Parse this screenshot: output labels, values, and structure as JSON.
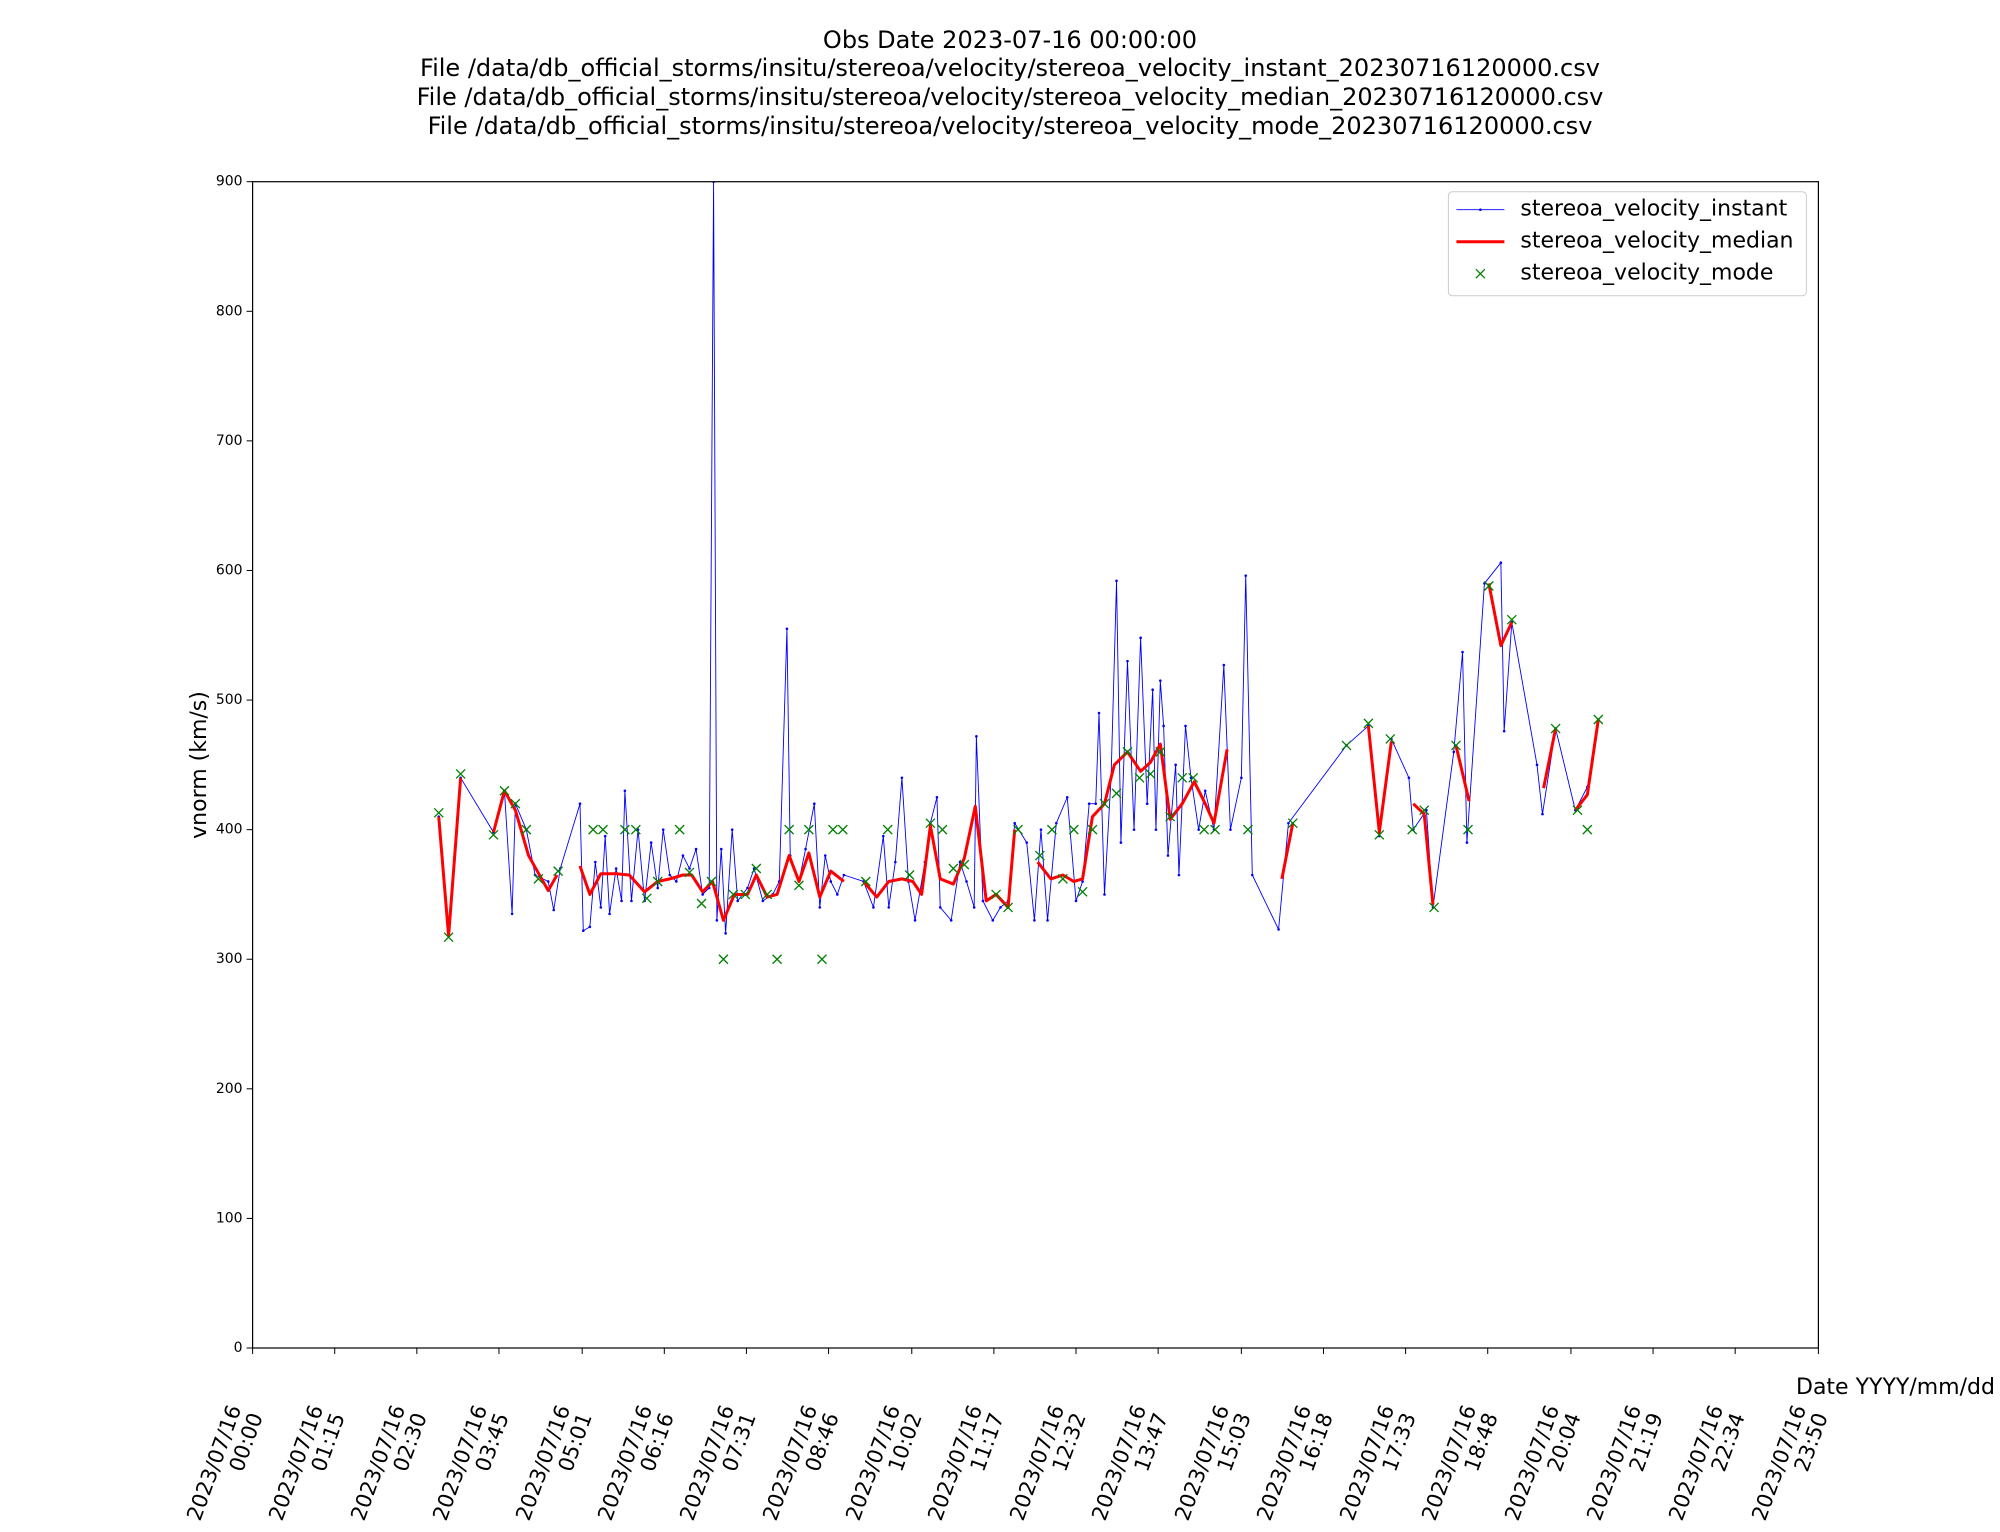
{
  "chart_data": {
    "type": "line",
    "title": [
      "Obs Date 2023-07-16 00:00:00",
      "File /data/db_official_storms/insitu/stereoa/velocity/stereoa_velocity_instant_20230716120000.csv",
      "File /data/db_official_storms/insitu/stereoa/velocity/stereoa_velocity_median_20230716120000.csv",
      "File /data/db_official_storms/insitu/stereoa/velocity/stereoa_velocity_mode_20230716120000.csv"
    ],
    "xlabel": "Date YYYY/mm/dd",
    "ylabel": "vnorm (km/s)",
    "xlim": [
      "2023/07/16 00:00",
      "2023/07/16 23:50"
    ],
    "xticks": [
      {
        "value": "2023/07/16 00:00",
        "label": "2023/07/16\n00:00"
      },
      {
        "value": "2023/07/16 01:15",
        "label": "2023/07/16\n01:15"
      },
      {
        "value": "2023/07/16 02:30",
        "label": "2023/07/16\n02:30"
      },
      {
        "value": "2023/07/16 03:45",
        "label": "2023/07/16\n03:45"
      },
      {
        "value": "2023/07/16 05:01",
        "label": "2023/07/16\n05:01"
      },
      {
        "value": "2023/07/16 06:16",
        "label": "2023/07/16\n06:16"
      },
      {
        "value": "2023/07/16 07:31",
        "label": "2023/07/16\n07:31"
      },
      {
        "value": "2023/07/16 08:46",
        "label": "2023/07/16\n08:46"
      },
      {
        "value": "2023/07/16 10:02",
        "label": "2023/07/16\n10:02"
      },
      {
        "value": "2023/07/16 11:17",
        "label": "2023/07/16\n11:17"
      },
      {
        "value": "2023/07/16 12:32",
        "label": "2023/07/16\n12:32"
      },
      {
        "value": "2023/07/16 13:47",
        "label": "2023/07/16\n13:47"
      },
      {
        "value": "2023/07/16 15:03",
        "label": "2023/07/16\n15:03"
      },
      {
        "value": "2023/07/16 16:18",
        "label": "2023/07/16\n16:18"
      },
      {
        "value": "2023/07/16 17:33",
        "label": "2023/07/16\n17:33"
      },
      {
        "value": "2023/07/16 18:48",
        "label": "2023/07/16\n18:48"
      },
      {
        "value": "2023/07/16 20:04",
        "label": "2023/07/16\n20:04"
      },
      {
        "value": "2023/07/16 21:19",
        "label": "2023/07/16\n21:19"
      },
      {
        "value": "2023/07/16 22:34",
        "label": "2023/07/16\n22:34"
      },
      {
        "value": "2023/07/16 23:50",
        "label": "2023/07/16\n23:50"
      }
    ],
    "ylim": [
      0,
      900
    ],
    "yticks": [
      0,
      100,
      200,
      300,
      400,
      500,
      600,
      700,
      800,
      900
    ],
    "legend": "upper right",
    "series": [
      {
        "name": "stereoa_velocity_instant",
        "color": "#0000ff",
        "style": "line",
        "x": [
          "2023/07/16 02:50",
          "2023/07/16 02:59",
          "2023/07/16 03:10",
          "2023/07/16 03:40",
          "2023/07/16 03:50",
          "2023/07/16 03:57",
          "2023/07/16 04:00",
          "2023/07/16 04:10",
          "2023/07/16 04:18",
          "2023/07/16 04:30",
          "2023/07/16 04:35",
          "2023/07/16 04:41",
          "2023/07/16 04:59",
          "2023/07/16 05:02",
          "2023/07/16 05:08",
          "2023/07/16 05:13",
          "2023/07/16 05:18",
          "2023/07/16 05:22",
          "2023/07/16 05:26",
          "2023/07/16 05:32",
          "2023/07/16 05:37",
          "2023/07/16 05:40",
          "2023/07/16 05:46",
          "2023/07/16 05:52",
          "2023/07/16 05:58",
          "2023/07/16 06:04",
          "2023/07/16 06:10",
          "2023/07/16 06:15",
          "2023/07/16 06:21",
          "2023/07/16 06:27",
          "2023/07/16 06:33",
          "2023/07/16 06:39",
          "2023/07/16 06:45",
          "2023/07/16 06:51",
          "2023/07/16 06:57",
          "2023/07/16 07:01",
          "2023/07/16 07:04",
          "2023/07/16 07:08",
          "2023/07/16 07:12",
          "2023/07/16 07:18",
          "2023/07/16 07:23",
          "2023/07/16 07:32",
          "2023/07/16 07:38",
          "2023/07/16 07:46",
          "2023/07/16 07:55",
          "2023/07/16 08:01",
          "2023/07/16 08:08",
          "2023/07/16 08:11",
          "2023/07/16 08:19",
          "2023/07/16 08:25",
          "2023/07/16 08:33",
          "2023/07/16 08:38",
          "2023/07/16 08:43",
          "2023/07/16 08:48",
          "2023/07/16 08:54",
          "2023/07/16 09:00",
          "2023/07/16 09:18",
          "2023/07/16 09:27",
          "2023/07/16 09:36",
          "2023/07/16 09:41",
          "2023/07/16 09:47",
          "2023/07/16 09:53",
          "2023/07/16 09:59",
          "2023/07/16 10:05",
          "2023/07/16 10:14",
          "2023/07/16 10:19",
          "2023/07/16 10:25",
          "2023/07/16 10:28",
          "2023/07/16 10:38",
          "2023/07/16 10:46",
          "2023/07/16 10:52",
          "2023/07/16 10:59",
          "2023/07/16 11:01",
          "2023/07/16 11:07",
          "2023/07/16 11:16",
          "2023/07/16 11:23",
          "2023/07/16 11:30",
          "2023/07/16 11:36",
          "2023/07/16 11:47",
          "2023/07/16 11:54",
          "2023/07/16 12:00",
          "2023/07/16 12:06",
          "2023/07/16 12:14",
          "2023/07/16 12:24",
          "2023/07/16 12:32",
          "2023/07/16 12:38",
          "2023/07/16 12:44",
          "2023/07/16 12:50",
          "2023/07/16 12:53",
          "2023/07/16 12:58",
          "2023/07/16 13:04",
          "2023/07/16 13:09",
          "2023/07/16 13:13",
          "2023/07/16 13:19",
          "2023/07/16 13:25",
          "2023/07/16 13:31",
          "2023/07/16 13:37",
          "2023/07/16 13:42",
          "2023/07/16 13:45",
          "2023/07/16 13:49",
          "2023/07/16 13:52",
          "2023/07/16 13:56",
          "2023/07/16 14:03",
          "2023/07/16 14:06",
          "2023/07/16 14:12",
          "2023/07/16 14:17",
          "2023/07/16 14:24",
          "2023/07/16 14:30",
          "2023/07/16 14:38",
          "2023/07/16 14:47",
          "2023/07/16 14:53",
          "2023/07/16 15:03",
          "2023/07/16 15:07",
          "2023/07/16 15:13",
          "2023/07/16 15:37",
          "2023/07/16 15:46",
          "2023/07/16 16:39",
          "2023/07/16 16:59",
          "2023/07/16 17:09",
          "2023/07/16 17:20",
          "2023/07/16 17:36",
          "2023/07/16 17:40",
          "2023/07/16 17:52",
          "2023/07/16 17:58",
          "2023/07/16 18:17",
          "2023/07/16 18:25",
          "2023/07/16 18:29",
          "2023/07/16 18:45",
          "2023/07/16 19:00",
          "2023/07/16 19:03",
          "2023/07/16 19:10",
          "2023/07/16 19:33",
          "2023/07/16 19:38",
          "2023/07/16 19:50",
          "2023/07/16 20:08",
          "2023/07/16 20:19",
          "2023/07/16 20:29"
        ],
        "values": [
          410,
          320,
          440,
          398,
          430,
          335,
          420,
          400,
          365,
          360,
          338,
          370,
          420,
          322,
          325,
          375,
          340,
          395,
          335,
          370,
          345,
          430,
          345,
          400,
          345,
          390,
          355,
          400,
          365,
          360,
          380,
          370,
          385,
          350,
          355,
          900,
          330,
          385,
          320,
          400,
          345,
          355,
          370,
          345,
          350,
          360,
          555,
          380,
          360,
          385,
          420,
          340,
          380,
          360,
          350,
          365,
          360,
          340,
          395,
          340,
          375,
          440,
          360,
          330,
          375,
          405,
          425,
          340,
          330,
          375,
          360,
          340,
          472,
          345,
          330,
          340,
          345,
          405,
          390,
          330,
          400,
          330,
          405,
          425,
          345,
          360,
          420,
          420,
          490,
          350,
          440,
          592,
          390,
          530,
          400,
          548,
          420,
          508,
          400,
          515,
          480,
          380,
          450,
          365,
          480,
          440,
          400,
          430,
          400,
          527,
          400,
          440,
          596,
          365,
          323,
          405,
          465,
          480,
          395,
          470,
          440,
          400,
          415,
          340,
          460,
          537,
          390,
          590,
          606,
          476,
          560,
          450,
          412,
          478,
          415,
          433,
          485
        ]
      },
      {
        "name": "stereoa_velocity_median",
        "color": "#ff0000",
        "style": "thick",
        "x": [
          "2023/07/16 02:50",
          "2023/07/16 02:59",
          "2023/07/16 03:10",
          "2023/07/16 03:25",
          "2023/07/16 03:40",
          "2023/07/16 03:50",
          "2023/07/16 04:00",
          "2023/07/16 04:12",
          "2023/07/16 04:30",
          "2023/07/16 04:38",
          "2023/07/16 04:48",
          "2023/07/16 04:59",
          "2023/07/16 05:08",
          "2023/07/16 05:18",
          "2023/07/16 05:32",
          "2023/07/16 05:44",
          "2023/07/16 05:58",
          "2023/07/16 06:10",
          "2023/07/16 06:21",
          "2023/07/16 06:33",
          "2023/07/16 06:41",
          "2023/07/16 06:51",
          "2023/07/16 07:00",
          "2023/07/16 07:10",
          "2023/07/16 07:20",
          "2023/07/16 07:32",
          "2023/07/16 07:40",
          "2023/07/16 07:50",
          "2023/07/16 07:59",
          "2023/07/16 08:10",
          "2023/07/16 08:19",
          "2023/07/16 08:28",
          "2023/07/16 08:38",
          "2023/07/16 08:48",
          "2023/07/16 09:00",
          "2023/07/16 09:09",
          "2023/07/16 09:18",
          "2023/07/16 09:30",
          "2023/07/16 09:41",
          "2023/07/16 09:53",
          "2023/07/16 10:03",
          "2023/07/16 10:11",
          "2023/07/16 10:19",
          "2023/07/16 10:28",
          "2023/07/16 10:40",
          "2023/07/16 10:50",
          "2023/07/16 11:00",
          "2023/07/16 11:10",
          "2023/07/16 11:19",
          "2023/07/16 11:30",
          "2023/07/16 11:36",
          "2023/07/16 11:46",
          "2023/07/16 11:57",
          "2023/07/16 12:09",
          "2023/07/16 12:20",
          "2023/07/16 12:30",
          "2023/07/16 12:38",
          "2023/07/16 12:47",
          "2023/07/16 12:58",
          "2023/07/16 13:07",
          "2023/07/16 13:19",
          "2023/07/16 13:31",
          "2023/07/16 13:40",
          "2023/07/16 13:49",
          "2023/07/16 13:58",
          "2023/07/16 14:09",
          "2023/07/16 14:20",
          "2023/07/16 14:30",
          "2023/07/16 14:38",
          "2023/07/16 14:50",
          "2023/07/16 15:15",
          "2023/07/16 15:40",
          "2023/07/16 15:50",
          "2023/07/16 16:25",
          "2023/07/16 16:59",
          "2023/07/16 17:09",
          "2023/07/16 17:20",
          "2023/07/16 17:30",
          "2023/07/16 17:40",
          "2023/07/16 17:50",
          "2023/07/16 17:58",
          "2023/07/16 18:08",
          "2023/07/16 18:19",
          "2023/07/16 18:31",
          "2023/07/16 18:40",
          "2023/07/16 18:49",
          "2023/07/16 19:00",
          "2023/07/16 19:10",
          "2023/07/16 19:25",
          "2023/07/16 19:39",
          "2023/07/16 19:50",
          "2023/07/16 20:00",
          "2023/07/16 20:08",
          "2023/07/16 20:19",
          "2023/07/16 20:29"
        ],
        "values": [
          410,
          318,
          440,
          null,
          398,
          430,
          415,
          380,
          353,
          365,
          null,
          372,
          350,
          366,
          366,
          365,
          352,
          360,
          362,
          365,
          365,
          352,
          360,
          330,
          350,
          350,
          365,
          348,
          350,
          380,
          360,
          382,
          348,
          368,
          360,
          null,
          360,
          348,
          360,
          362,
          360,
          350,
          403,
          362,
          358,
          378,
          418,
          345,
          350,
          340,
          400,
          null,
          375,
          362,
          365,
          360,
          362,
          410,
          420,
          450,
          460,
          445,
          452,
          466,
          408,
          420,
          437,
          420,
          405,
          462,
          null,
          362,
          405,
          null,
          480,
          398,
          468,
          null,
          420,
          412,
          342,
          null,
          465,
          422,
          null,
          590,
          542,
          560,
          null,
          432,
          478,
          null,
          415,
          427,
          485
        ]
      },
      {
        "name": "stereoa_velocity_mode",
        "color": "#008000",
        "style": "x",
        "x": [
          "2023/07/16 02:50",
          "2023/07/16 02:59",
          "2023/07/16 03:10",
          "2023/07/16 03:40",
          "2023/07/16 03:50",
          "2023/07/16 04:00",
          "2023/07/16 04:10",
          "2023/07/16 04:21",
          "2023/07/16 04:39",
          "2023/07/16 05:11",
          "2023/07/16 05:20",
          "2023/07/16 05:40",
          "2023/07/16 05:50",
          "2023/07/16 06:00",
          "2023/07/16 06:10",
          "2023/07/16 06:30",
          "2023/07/16 06:39",
          "2023/07/16 06:50",
          "2023/07/16 06:59",
          "2023/07/16 07:10",
          "2023/07/16 07:19",
          "2023/07/16 07:30",
          "2023/07/16 07:40",
          "2023/07/16 07:50",
          "2023/07/16 07:59",
          "2023/07/16 08:10",
          "2023/07/16 08:19",
          "2023/07/16 08:28",
          "2023/07/16 08:40",
          "2023/07/16 08:50",
          "2023/07/16 08:59",
          "2023/07/16 09:20",
          "2023/07/16 09:40",
          "2023/07/16 10:00",
          "2023/07/16 10:19",
          "2023/07/16 10:30",
          "2023/07/16 10:40",
          "2023/07/16 10:50",
          "2023/07/16 11:19",
          "2023/07/16 11:30",
          "2023/07/16 11:39",
          "2023/07/16 11:59",
          "2023/07/16 12:10",
          "2023/07/16 12:20",
          "2023/07/16 12:30",
          "2023/07/16 12:38",
          "2023/07/16 12:47",
          "2023/07/16 12:58",
          "2023/07/16 13:09",
          "2023/07/16 13:19",
          "2023/07/16 13:30",
          "2023/07/16 13:40",
          "2023/07/16 13:49",
          "2023/07/16 13:58",
          "2023/07/16 14:09",
          "2023/07/16 14:19",
          "2023/07/16 14:29",
          "2023/07/16 14:39",
          "2023/07/16 15:09",
          "2023/07/16 15:50",
          "2023/07/16 16:39",
          "2023/07/16 16:59",
          "2023/07/16 17:09",
          "2023/07/16 17:19",
          "2023/07/16 17:39",
          "2023/07/16 17:50",
          "2023/07/16 17:59",
          "2023/07/16 18:19",
          "2023/07/16 18:30",
          "2023/07/16 18:49",
          "2023/07/16 19:10",
          "2023/07/16 19:50",
          "2023/07/16 20:10",
          "2023/07/16 20:19",
          "2023/07/16 20:29"
        ],
        "values": [
          413,
          317,
          443,
          396,
          430,
          420,
          400,
          362,
          368,
          400,
          400,
          400,
          400,
          347,
          360,
          400,
          367,
          343,
          360,
          300,
          350,
          350,
          370,
          350,
          300,
          400,
          357,
          400,
          300,
          400,
          400,
          360,
          400,
          365,
          405,
          400,
          370,
          373,
          350,
          340,
          400,
          380,
          400,
          362,
          400,
          352,
          400,
          420,
          428,
          460,
          440,
          443,
          460,
          410,
          440,
          440,
          400,
          400,
          400,
          405,
          465,
          482,
          396,
          470,
          400,
          415,
          340,
          465,
          400,
          588,
          562,
          478,
          415,
          400,
          485
        ]
      }
    ]
  }
}
